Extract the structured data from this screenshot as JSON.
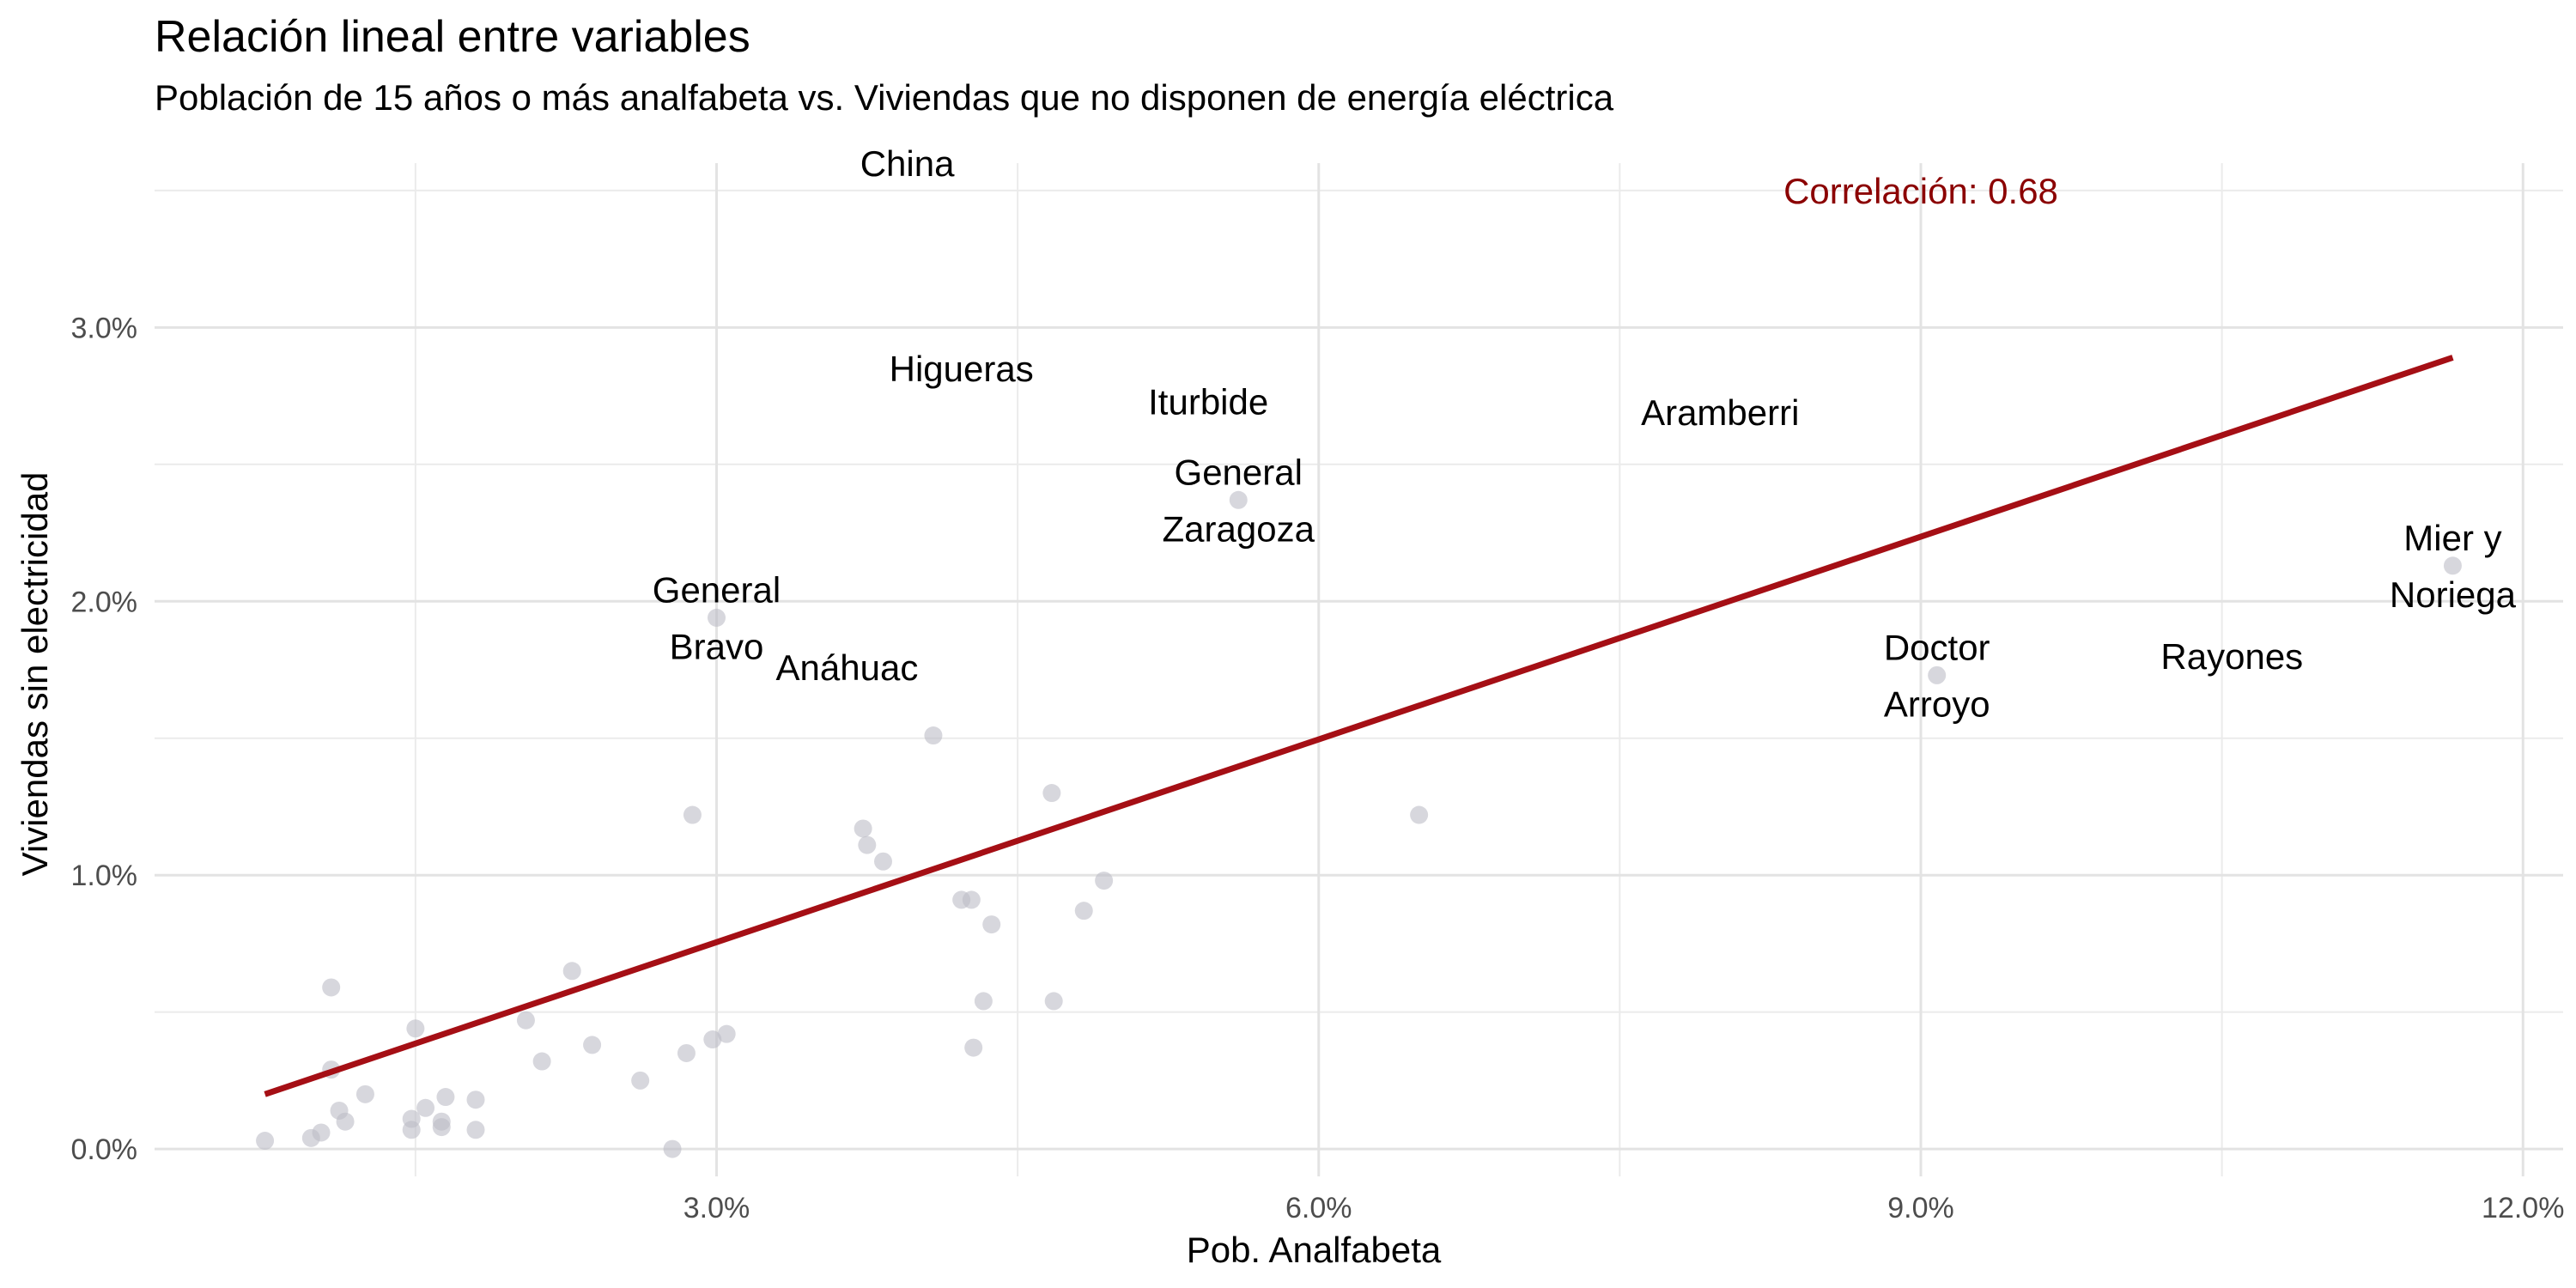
{
  "chart_data": {
    "type": "scatter",
    "title": "Relación lineal entre variables",
    "subtitle": "Población de 15 años o más analfabeta vs. Viviendas que no disponen de energía eléctrica",
    "xlabel": "Pob. Analfabeta",
    "ylabel": "Viviendas sin electricidad",
    "xlim": [
      0.2,
      12.2
    ],
    "ylim": [
      -0.1,
      3.6
    ],
    "x_ticks": [
      3,
      6,
      9,
      12
    ],
    "x_tick_labels": [
      "3.0%",
      "6.0%",
      "9.0%",
      "12.0%"
    ],
    "y_ticks": [
      0,
      1,
      2,
      3
    ],
    "y_tick_labels": [
      "0.0%",
      "1.0%",
      "2.0%",
      "3.0%"
    ],
    "grid": true,
    "point_color": "#bdbcc7",
    "line_color": "#a50f15",
    "annotation_color": "#8b0000",
    "annotation": "Correlación: 0.68",
    "trend_line": {
      "x": [
        0.75,
        11.65
      ],
      "y": [
        0.2,
        2.89
      ]
    },
    "points": [
      {
        "x": 0.75,
        "y": 0.03
      },
      {
        "x": 0.98,
        "y": 0.04
      },
      {
        "x": 1.03,
        "y": 0.06
      },
      {
        "x": 1.08,
        "y": 0.59
      },
      {
        "x": 1.08,
        "y": 0.29
      },
      {
        "x": 1.12,
        "y": 0.14
      },
      {
        "x": 1.15,
        "y": 0.1
      },
      {
        "x": 1.25,
        "y": 0.2
      },
      {
        "x": 1.48,
        "y": 0.07
      },
      {
        "x": 1.48,
        "y": 0.11
      },
      {
        "x": 1.5,
        "y": 0.44
      },
      {
        "x": 1.55,
        "y": 0.15
      },
      {
        "x": 1.63,
        "y": 0.08
      },
      {
        "x": 1.63,
        "y": 0.1
      },
      {
        "x": 1.65,
        "y": 0.19
      },
      {
        "x": 1.8,
        "y": 0.07
      },
      {
        "x": 1.8,
        "y": 0.18
      },
      {
        "x": 2.05,
        "y": 0.47
      },
      {
        "x": 2.13,
        "y": 0.32
      },
      {
        "x": 2.28,
        "y": 0.65
      },
      {
        "x": 2.38,
        "y": 0.38
      },
      {
        "x": 2.62,
        "y": 0.25
      },
      {
        "x": 2.78,
        "y": 0.0
      },
      {
        "x": 2.85,
        "y": 0.35
      },
      {
        "x": 2.88,
        "y": 1.22
      },
      {
        "x": 2.98,
        "y": 0.4
      },
      {
        "x": 3.0,
        "y": 1.94
      },
      {
        "x": 3.05,
        "y": 0.42
      },
      {
        "x": 3.73,
        "y": 1.17
      },
      {
        "x": 3.75,
        "y": 1.11
      },
      {
        "x": 3.83,
        "y": 1.05
      },
      {
        "x": 4.08,
        "y": 1.51
      },
      {
        "x": 4.22,
        "y": 0.91
      },
      {
        "x": 4.27,
        "y": 0.91
      },
      {
        "x": 4.28,
        "y": 0.37
      },
      {
        "x": 4.33,
        "y": 0.54
      },
      {
        "x": 4.37,
        "y": 0.82
      },
      {
        "x": 4.67,
        "y": 1.3
      },
      {
        "x": 4.68,
        "y": 0.54
      },
      {
        "x": 4.83,
        "y": 0.87
      },
      {
        "x": 4.93,
        "y": 0.98
      },
      {
        "x": 5.6,
        "y": 2.37
      },
      {
        "x": 6.5,
        "y": 1.22
      },
      {
        "x": 9.08,
        "y": 1.73
      },
      {
        "x": 11.65,
        "y": 2.13
      }
    ],
    "labels": [
      {
        "lines": [
          "China"
        ],
        "x": 3.95,
        "y": 3.6
      },
      {
        "lines": [
          "Higueras"
        ],
        "x": 4.22,
        "y": 2.85
      },
      {
        "lines": [
          "Iturbide"
        ],
        "x": 5.45,
        "y": 2.73
      },
      {
        "lines": [
          "Aramberri"
        ],
        "x": 8.0,
        "y": 2.69
      },
      {
        "lines": [
          "General",
          "Zaragoza"
        ],
        "x": 5.6,
        "y": 2.37
      },
      {
        "lines": [
          "General",
          "Bravo"
        ],
        "x": 3.0,
        "y": 1.94
      },
      {
        "lines": [
          "Anáhuac"
        ],
        "x": 3.65,
        "y": 1.76
      },
      {
        "lines": [
          "Doctor",
          "Arroyo"
        ],
        "x": 9.08,
        "y": 1.73
      },
      {
        "lines": [
          "Rayones"
        ],
        "x": 10.55,
        "y": 1.8
      },
      {
        "lines": [
          "Mier y",
          "Noriega"
        ],
        "x": 11.65,
        "y": 2.13
      }
    ]
  }
}
